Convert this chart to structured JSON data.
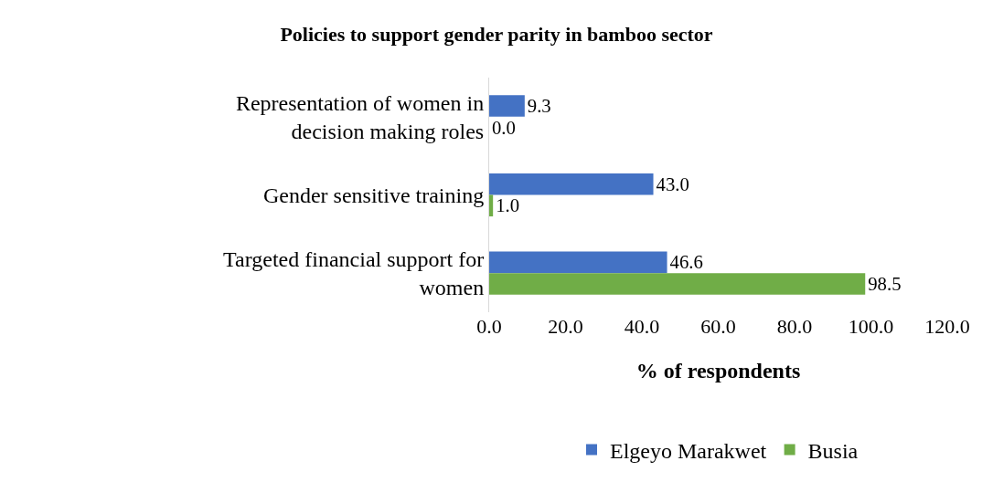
{
  "chart_data": {
    "type": "bar",
    "orientation": "horizontal",
    "title": "Policies to support gender parity in bamboo sector",
    "xlabel": "% of respondents",
    "categories": [
      "Representation of women in decision making roles",
      "Gender sensitive training",
      "Targeted financial support for women"
    ],
    "series": [
      {
        "name": "Elgeyo Marakwet",
        "color": "#4472c4",
        "values": [
          9.3,
          43.0,
          46.6
        ],
        "value_labels": [
          "9.3",
          "43.0",
          "46.6"
        ]
      },
      {
        "name": "Busia",
        "color": "#70ad47",
        "values": [
          0.0,
          1.0,
          98.5
        ],
        "value_labels": [
          "0.0",
          "1.0",
          "98.5"
        ]
      }
    ],
    "xlim": [
      0,
      120
    ],
    "xticks": [
      {
        "value": 0,
        "label": "0.0"
      },
      {
        "value": 20,
        "label": "20.0"
      },
      {
        "value": 40,
        "label": "40.0"
      },
      {
        "value": 60,
        "label": "60.0"
      },
      {
        "value": 80,
        "label": "80.0"
      },
      {
        "value": 100,
        "label": "100.0"
      },
      {
        "value": 120,
        "label": "120.0"
      }
    ],
    "grid": false,
    "legend": "bottom"
  }
}
